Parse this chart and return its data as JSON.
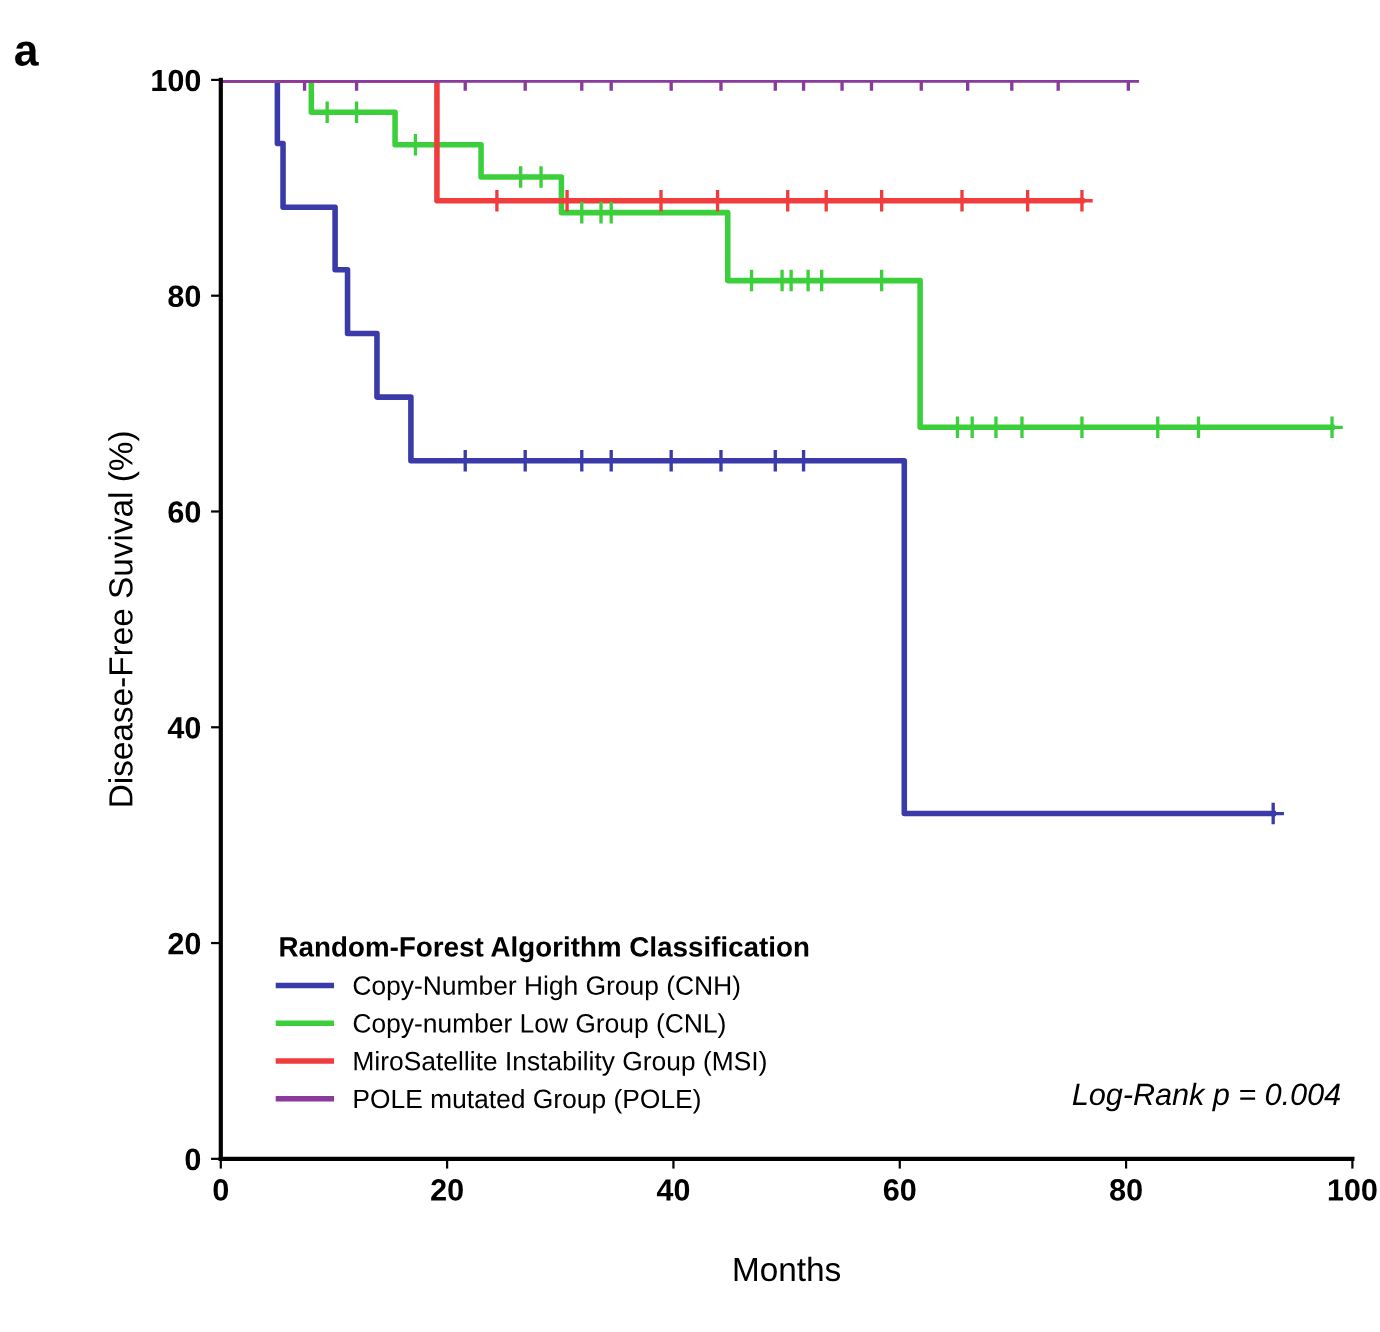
{
  "chart_data": {
    "type": "step",
    "xlabel": "Months",
    "ylabel": "Disease-Free Suvival (%)",
    "legend_title": "Random-Forest Algorithm Classification",
    "legend": "bottom left",
    "grid": false,
    "xlim": [
      0,
      100
    ],
    "xticks": [
      0,
      20,
      40,
      60,
      80,
      100
    ],
    "ylim": [
      0,
      100
    ],
    "yticks": [
      0,
      20,
      40,
      60,
      80,
      100
    ],
    "annotations": [
      "a",
      "Log-Rank p = 0.004"
    ],
    "series": [
      {
        "name": "Copy-Number High Group (CNH)",
        "color": "#3a3aa8",
        "x": [
          0,
          5,
          5.5,
          10.1,
          11.2,
          13.8,
          16.8,
          60.4,
          93
        ],
        "values": [
          100,
          94.1,
          88.2,
          82.4,
          76.5,
          70.6,
          64.7,
          32,
          32
        ]
      },
      {
        "name": "Copy-number Low Group (CNL)",
        "color": "#3ccf3c",
        "x": [
          0,
          8,
          15.4,
          23,
          30.1,
          44.8,
          61.8,
          98.2
        ],
        "values": [
          100,
          97,
          94,
          91,
          87.7,
          81.4,
          67.8,
          67.8
        ]
      },
      {
        "name": "MiroSatellite Instability Group (MSI)",
        "color": "#f03c3c",
        "x": [
          0,
          19.1,
          76.1
        ],
        "values": [
          100,
          88.8,
          88.8
        ]
      },
      {
        "name": "POLE mutated Group (POLE)",
        "color": "#8a3a9a",
        "x": [
          0,
          80.9
        ],
        "values": [
          100,
          100
        ]
      },
      {
        "type": "scatter",
        "marker": "cross",
        "color": "#3a3aa8",
        "x": [
          21.6,
          26.9,
          31.9,
          34.5,
          39.8,
          44.2,
          49,
          51.5,
          93
        ],
        "values": [
          64.7,
          64.7,
          64.7,
          64.7,
          64.7,
          64.7,
          64.7,
          64.7,
          32
        ]
      },
      {
        "type": "scatter",
        "marker": "cross",
        "color": "#3ccf3c",
        "x": [
          9.4,
          12,
          17.2,
          26.5,
          28.3,
          31.9,
          33.6,
          34.5,
          46.9,
          49.6,
          50.4,
          51.9,
          53.1,
          58.4,
          65.1,
          66.4,
          68.5,
          70.8,
          76.1,
          82.8,
          86.4,
          98.2
        ],
        "values": [
          97,
          97,
          94,
          91,
          91,
          87.7,
          87.7,
          87.7,
          81.4,
          81.4,
          81.4,
          81.4,
          81.4,
          81.4,
          67.8,
          67.8,
          67.8,
          67.8,
          67.8,
          67.8,
          67.8,
          67.8
        ]
      },
      {
        "type": "scatter",
        "marker": "cross",
        "color": "#f03c3c",
        "x": [
          24.4,
          30.6,
          38.9,
          43.9,
          50.1,
          53.5,
          58.4,
          65.5,
          71.3,
          76.1
        ],
        "values": [
          88.8,
          88.8,
          88.8,
          88.8,
          88.8,
          88.8,
          88.8,
          88.8,
          88.8,
          88.8
        ]
      },
      {
        "type": "scatter",
        "marker": "cross",
        "color": "#8a3a9a",
        "x": [
          7.4,
          12,
          21.6,
          26.9,
          31.9,
          34.5,
          39.8,
          44.2,
          49,
          51.5,
          54.9,
          57.5,
          61.9,
          66,
          69.9,
          74,
          80.2
        ],
        "values": [
          100,
          100,
          100,
          100,
          100,
          100,
          100,
          100,
          100,
          100,
          100,
          100,
          100,
          100,
          100,
          100,
          100
        ]
      }
    ]
  }
}
